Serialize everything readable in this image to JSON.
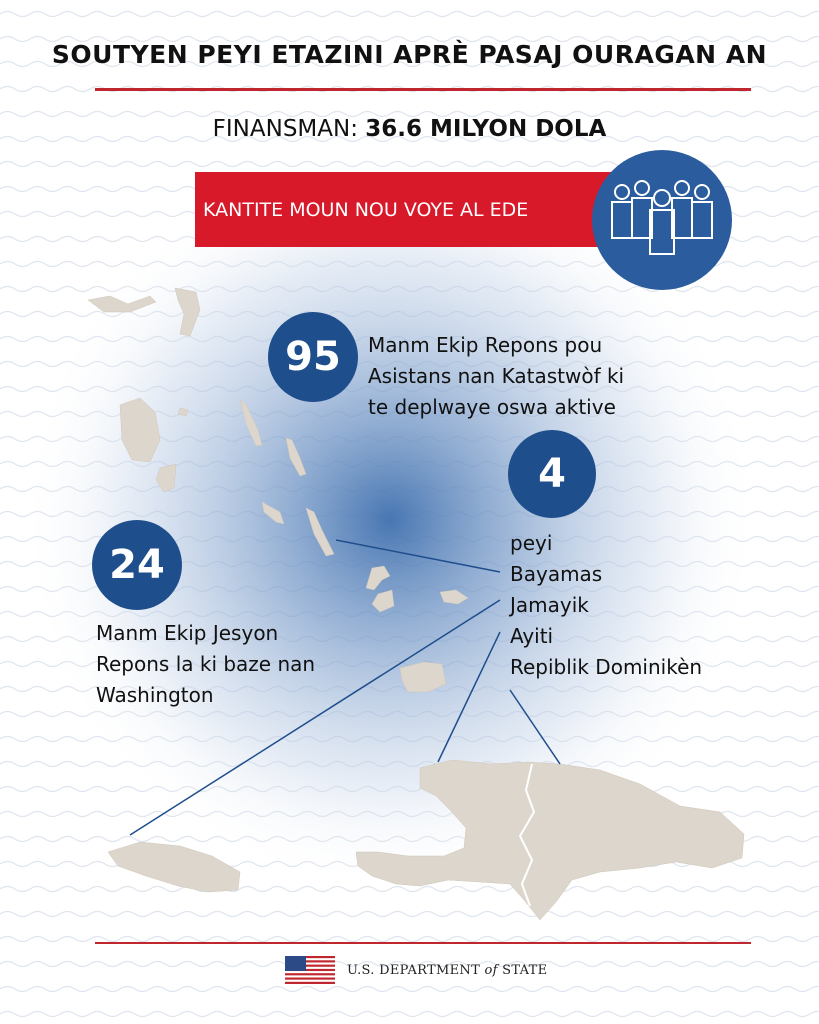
{
  "header": {
    "title": "SOUTYEN PEYI ETAZINI APRÈ PASAJ OURAGAN AN"
  },
  "funding": {
    "label": "FINANSMAN:",
    "amount": "36.6 MILYON DOLA"
  },
  "banner": {
    "label": "KANTITE MOUN NOU VOYE AL EDE",
    "icon": "people-group-icon"
  },
  "stats": {
    "deployed": {
      "number": "95",
      "lines": [
        "Manm Ekip Repons pou",
        "Asistans nan Katastwòf ki",
        "te deplwaye oswa aktive"
      ]
    },
    "washington": {
      "number": "24",
      "lines": [
        "Manm Ekip Jesyon",
        "Repons la ki baze nan",
        "Washington"
      ]
    },
    "countries": {
      "number": "4",
      "unit": "peyi",
      "list": [
        "Bayamas",
        "Jamayik",
        "Ayiti",
        "Repiblik Dominikèn"
      ]
    }
  },
  "footer": {
    "department_prefix": "U.S. DEPARTMENT",
    "department_of": "of",
    "department_suffix": "STATE",
    "flag_icon": "us-flag-icon"
  },
  "colors": {
    "accent_red": "#d7192a",
    "rule_red": "#c0262d",
    "circle_blue": "#1f4e8c",
    "people_blue": "#2b5c9e",
    "land": "#ddd6cc"
  }
}
